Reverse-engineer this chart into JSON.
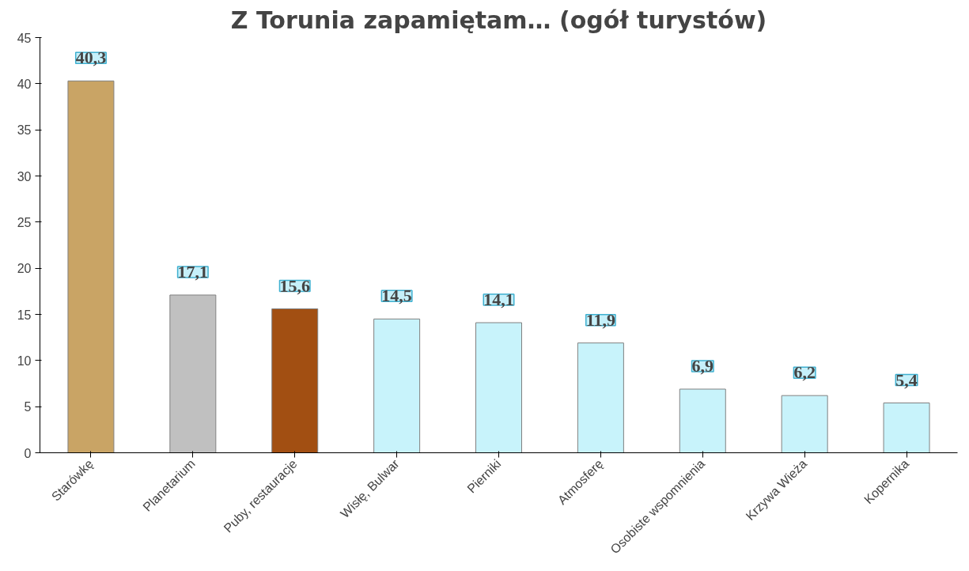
{
  "chart_data": {
    "type": "bar",
    "title": "Z Torunia zapamiętam… (ogół turystów)",
    "categories": [
      "Starówkę",
      "Planetarium",
      "Puby, restauracje",
      "Wisłę, Bulwar",
      "Pierniki",
      "Atmosferę",
      "Osobiste wspomnienia",
      "Krzywa Wieża",
      "Kopernika"
    ],
    "values": [
      40.3,
      17.1,
      15.6,
      14.5,
      14.1,
      11.9,
      6.9,
      6.2,
      5.4
    ],
    "value_labels": [
      "40,3",
      "17,1",
      "15,6",
      "14,5",
      "14,1",
      "11,9",
      "6,9",
      "6,2",
      "5,4"
    ],
    "colors": [
      "#c9a465",
      "#c0c0c0",
      "#a24f12",
      "#c8f3fb",
      "#c8f3fb",
      "#c8f3fb",
      "#c8f3fb",
      "#c8f3fb",
      "#c8f3fb"
    ],
    "ylim": [
      0,
      45
    ],
    "yticks": [
      0,
      5,
      10,
      15,
      20,
      25,
      30,
      35,
      40,
      45
    ],
    "grid": false
  }
}
